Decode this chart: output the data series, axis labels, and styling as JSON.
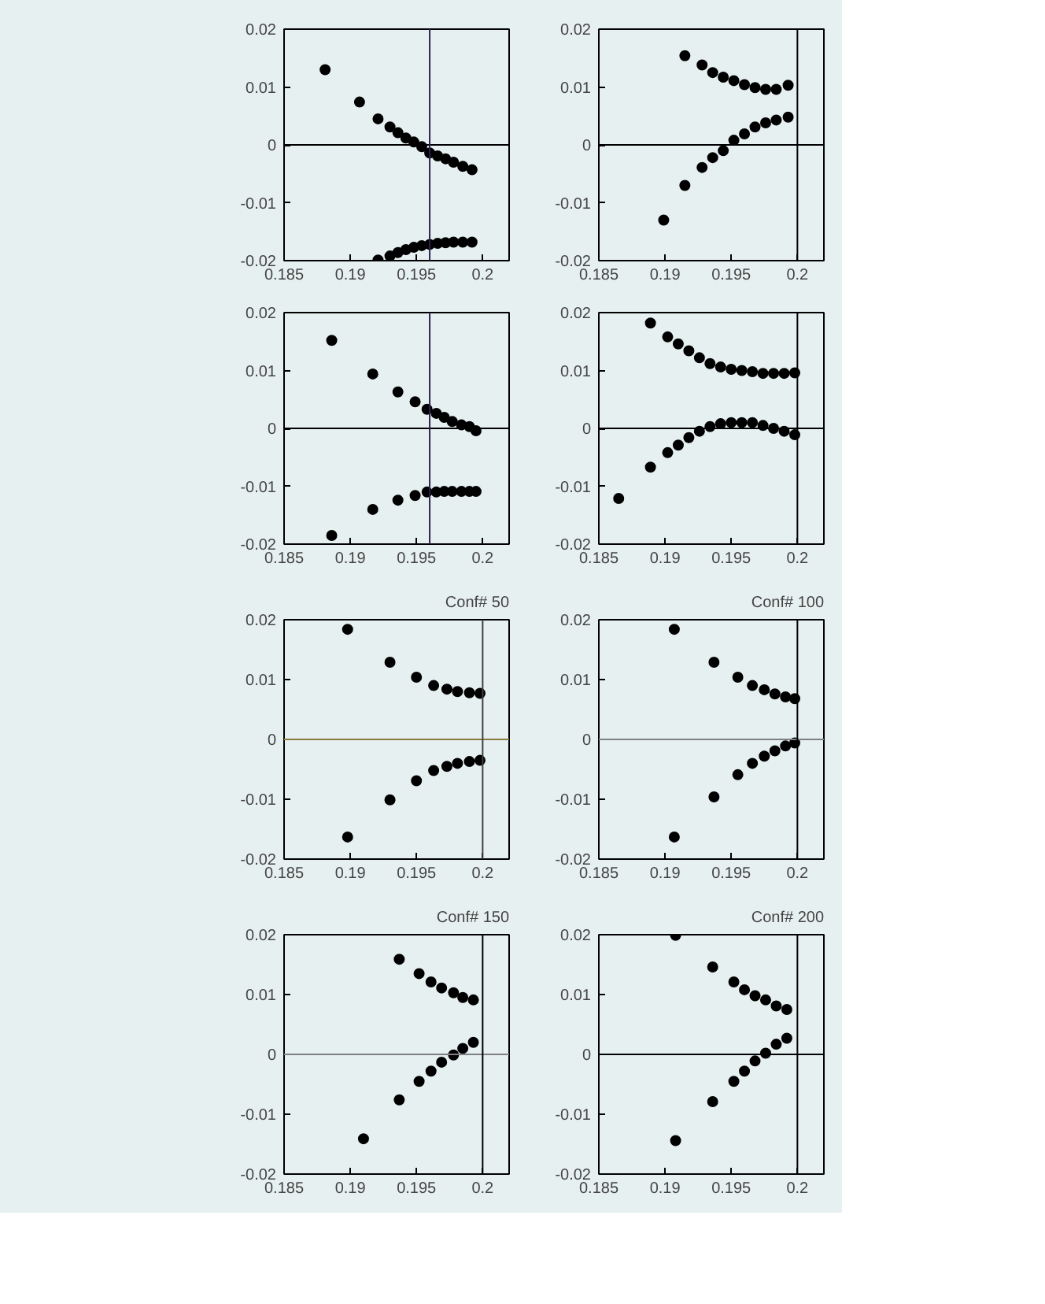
{
  "chart_data": [
    {
      "type": "scatter",
      "xlim": [
        0.185,
        0.202
      ],
      "ylim": [
        -0.02,
        0.02
      ],
      "xticks": [
        0.185,
        0.19,
        0.195,
        0.2
      ],
      "yticks": [
        -0.02,
        -0.01,
        0,
        0.01,
        0.02
      ],
      "grid": false,
      "marker": "circle",
      "ref_lines": [
        {
          "axis": "y",
          "value": 0,
          "color": "#000000"
        },
        {
          "axis": "x",
          "value": 0.196,
          "color": "#2a2050"
        }
      ],
      "series": [
        {
          "color": "#000000",
          "x": [
            0.1881,
            0.1907,
            0.1921,
            0.193,
            0.1936,
            0.1942,
            0.1948,
            0.1954,
            0.196,
            0.1966,
            0.1972,
            0.1978,
            0.1985,
            0.1992
          ],
          "values": [
            0.013,
            0.0074,
            0.0045,
            0.0031,
            0.0021,
            0.0012,
            0.0005,
            -0.0003,
            -0.0014,
            -0.0019,
            -0.0024,
            -0.003,
            -0.0037,
            -0.0043
          ]
        },
        {
          "color": "#000000",
          "x": [
            0.1921,
            0.193,
            0.1936,
            0.1942,
            0.1948,
            0.1954,
            0.196,
            0.1966,
            0.1972,
            0.1978,
            0.1985,
            0.1992
          ],
          "values": [
            -0.0199,
            -0.0192,
            -0.0186,
            -0.0181,
            -0.0177,
            -0.0174,
            -0.0172,
            -0.017,
            -0.0169,
            -0.0168,
            -0.0168,
            -0.0168
          ]
        }
      ]
    },
    {
      "type": "scatter",
      "xlim": [
        0.185,
        0.202
      ],
      "ylim": [
        -0.02,
        0.02
      ],
      "xticks": [
        0.185,
        0.19,
        0.195,
        0.2
      ],
      "yticks": [
        -0.02,
        -0.01,
        0,
        0.01,
        0.02
      ],
      "grid": false,
      "marker": "circle",
      "ref_lines": [
        {
          "axis": "y",
          "value": 0,
          "color": "#000000"
        },
        {
          "axis": "x",
          "value": 0.2,
          "color": "#000000"
        }
      ],
      "series": [
        {
          "color": "#000000",
          "x": [
            0.1915,
            0.1928,
            0.1936,
            0.1944,
            0.1952,
            0.196,
            0.1968,
            0.1976,
            0.1984,
            0.1993
          ],
          "values": [
            0.0154,
            0.0138,
            0.0125,
            0.0117,
            0.0111,
            0.0104,
            0.0099,
            0.0096,
            0.0096,
            0.0103
          ]
        },
        {
          "color": "#000000",
          "x": [
            0.1899,
            0.1915,
            0.1928,
            0.1936,
            0.1944,
            0.1952,
            0.196,
            0.1968,
            0.1976,
            0.1984,
            0.1993
          ],
          "values": [
            -0.013,
            -0.007,
            -0.0039,
            -0.0022,
            -0.001,
            0.0008,
            0.0019,
            0.0031,
            0.0038,
            0.0043,
            0.0048
          ]
        }
      ]
    },
    {
      "type": "scatter",
      "xlim": [
        0.185,
        0.202
      ],
      "ylim": [
        -0.02,
        0.02
      ],
      "xticks": [
        0.185,
        0.19,
        0.195,
        0.2
      ],
      "yticks": [
        -0.02,
        -0.01,
        0,
        0.01,
        0.02
      ],
      "grid": false,
      "marker": "circle",
      "ref_lines": [
        {
          "axis": "y",
          "value": 0,
          "color": "#000000"
        },
        {
          "axis": "x",
          "value": 0.196,
          "color": "#2a2050"
        }
      ],
      "series": [
        {
          "color": "#000000",
          "x": [
            0.1886,
            0.1917,
            0.1936,
            0.1949,
            0.1958,
            0.1965,
            0.1971,
            0.1977,
            0.1984,
            0.199,
            0.1995
          ],
          "values": [
            0.0152,
            0.0094,
            0.0063,
            0.0046,
            0.0033,
            0.0026,
            0.0019,
            0.0012,
            0.0006,
            0.0003,
            -0.0004
          ]
        },
        {
          "color": "#000000",
          "x": [
            0.1886,
            0.1917,
            0.1936,
            0.1949,
            0.1958,
            0.1965,
            0.1971,
            0.1977,
            0.1984,
            0.199,
            0.1995
          ],
          "values": [
            -0.0185,
            -0.014,
            -0.0124,
            -0.0116,
            -0.011,
            -0.011,
            -0.0109,
            -0.0109,
            -0.0109,
            -0.0109,
            -0.0109
          ]
        }
      ]
    },
    {
      "type": "scatter",
      "xlim": [
        0.185,
        0.202
      ],
      "ylim": [
        -0.02,
        0.02
      ],
      "xticks": [
        0.185,
        0.19,
        0.195,
        0.2
      ],
      "yticks": [
        -0.02,
        -0.01,
        0,
        0.01,
        0.02
      ],
      "grid": false,
      "marker": "circle",
      "ref_lines": [
        {
          "axis": "y",
          "value": 0,
          "color": "#000000"
        },
        {
          "axis": "x",
          "value": 0.2,
          "color": "#000000"
        }
      ],
      "series": [
        {
          "color": "#000000",
          "x": [
            0.1889,
            0.1902,
            0.191,
            0.1918,
            0.1926,
            0.1934,
            0.1942,
            0.195,
            0.1958,
            0.1966,
            0.1974,
            0.1982,
            0.199,
            0.1998
          ],
          "values": [
            0.0182,
            0.0158,
            0.0146,
            0.0134,
            0.0122,
            0.0112,
            0.0106,
            0.0102,
            0.01,
            0.0098,
            0.0095,
            0.0095,
            0.0095,
            0.0096
          ]
        },
        {
          "color": "#000000",
          "x": [
            0.1865,
            0.1889,
            0.1902,
            0.191,
            0.1918,
            0.1926,
            0.1934,
            0.1942,
            0.195,
            0.1958,
            0.1966,
            0.1974,
            0.1982,
            0.199,
            0.1998
          ],
          "values": [
            -0.0121,
            -0.0067,
            -0.0042,
            -0.0029,
            -0.0016,
            -0.0005,
            0.0003,
            0.0008,
            0.001,
            0.001,
            0.001,
            0.0005,
            0,
            -0.0005,
            -0.0011
          ]
        }
      ]
    },
    {
      "type": "scatter",
      "title": "Conf# 50",
      "xlim": [
        0.185,
        0.202
      ],
      "ylim": [
        -0.02,
        0.02
      ],
      "xticks": [
        0.185,
        0.19,
        0.195,
        0.2
      ],
      "yticks": [
        -0.02,
        -0.01,
        0,
        0.01,
        0.02
      ],
      "grid": false,
      "marker": "circle",
      "ref_lines": [
        {
          "axis": "y",
          "value": 0,
          "color": "#8a7a40"
        },
        {
          "axis": "x",
          "value": 0.2,
          "color": "#404040"
        }
      ],
      "series": [
        {
          "color": "#000000",
          "x": [
            0.1898,
            0.193,
            0.195,
            0.1963,
            0.1973,
            0.1981,
            0.199,
            0.1998
          ],
          "values": [
            0.0184,
            0.0129,
            0.0104,
            0.009,
            0.0084,
            0.008,
            0.0078,
            0.0077
          ]
        },
        {
          "color": "#000000",
          "x": [
            0.1898,
            0.193,
            0.195,
            0.1963,
            0.1973,
            0.1981,
            0.199,
            0.1998
          ],
          "values": [
            -0.0163,
            -0.0101,
            -0.0069,
            -0.0052,
            -0.0045,
            -0.004,
            -0.0037,
            -0.0035
          ]
        }
      ]
    },
    {
      "type": "scatter",
      "title": "Conf# 100",
      "xlim": [
        0.185,
        0.202
      ],
      "ylim": [
        -0.02,
        0.02
      ],
      "xticks": [
        0.185,
        0.19,
        0.195,
        0.2
      ],
      "yticks": [
        -0.02,
        -0.01,
        0,
        0.01,
        0.02
      ],
      "grid": false,
      "marker": "circle",
      "ref_lines": [
        {
          "axis": "y",
          "value": 0,
          "color": "#808080"
        },
        {
          "axis": "x",
          "value": 0.2,
          "color": "#000000"
        }
      ],
      "series": [
        {
          "color": "#000000",
          "x": [
            0.1907,
            0.1937,
            0.1955,
            0.1966,
            0.1975,
            0.1983,
            0.1991,
            0.1998
          ],
          "values": [
            0.0184,
            0.0129,
            0.0104,
            0.009,
            0.0083,
            0.0076,
            0.0071,
            0.0068
          ]
        },
        {
          "color": "#000000",
          "x": [
            0.1907,
            0.1937,
            0.1955,
            0.1966,
            0.1975,
            0.1983,
            0.1991,
            0.1998
          ],
          "values": [
            -0.0163,
            -0.0096,
            -0.0059,
            -0.004,
            -0.0028,
            -0.0019,
            -0.0011,
            -0.0006
          ]
        }
      ]
    },
    {
      "type": "scatter",
      "title": "Conf# 150",
      "xlim": [
        0.185,
        0.202
      ],
      "ylim": [
        -0.02,
        0.02
      ],
      "xticks": [
        0.185,
        0.19,
        0.195,
        0.2
      ],
      "yticks": [
        -0.02,
        -0.01,
        0,
        0.01,
        0.02
      ],
      "grid": false,
      "marker": "circle",
      "ref_lines": [
        {
          "axis": "y",
          "value": 0,
          "color": "#808080"
        },
        {
          "axis": "x",
          "value": 0.2,
          "color": "#000000"
        }
      ],
      "series": [
        {
          "color": "#000000",
          "x": [
            0.1937,
            0.1952,
            0.1961,
            0.1969,
            0.1978,
            0.1985,
            0.1993
          ],
          "values": [
            0.0159,
            0.0135,
            0.0121,
            0.0111,
            0.0103,
            0.0095,
            0.0091
          ]
        },
        {
          "color": "#000000",
          "x": [
            0.191,
            0.1937,
            0.1952,
            0.1961,
            0.1969,
            0.1978,
            0.1985,
            0.1993
          ],
          "values": [
            -0.0141,
            -0.0076,
            -0.0045,
            -0.0028,
            -0.0013,
            -0.0001,
            0.001,
            0.002
          ]
        }
      ]
    },
    {
      "type": "scatter",
      "title": "Conf# 200",
      "xlim": [
        0.185,
        0.202
      ],
      "ylim": [
        -0.02,
        0.02
      ],
      "xticks": [
        0.185,
        0.19,
        0.195,
        0.2
      ],
      "yticks": [
        -0.02,
        -0.01,
        0,
        0.01,
        0.02
      ],
      "grid": false,
      "marker": "circle",
      "ref_lines": [
        {
          "axis": "y",
          "value": 0,
          "color": "#000000"
        },
        {
          "axis": "x",
          "value": 0.2,
          "color": "#000000"
        }
      ],
      "series": [
        {
          "color": "#000000",
          "x": [
            0.1908,
            0.1936,
            0.1952,
            0.196,
            0.1968,
            0.1976,
            0.1984,
            0.1992
          ],
          "values": [
            0.0199,
            0.0146,
            0.0121,
            0.0108,
            0.0098,
            0.0091,
            0.0081,
            0.0075
          ]
        },
        {
          "color": "#000000",
          "x": [
            0.1908,
            0.1936,
            0.1952,
            0.196,
            0.1968,
            0.1976,
            0.1984,
            0.1992
          ],
          "values": [
            -0.0144,
            -0.0079,
            -0.0045,
            -0.0028,
            -0.0011,
            0.0002,
            0.0017,
            0.0027
          ]
        }
      ]
    }
  ]
}
